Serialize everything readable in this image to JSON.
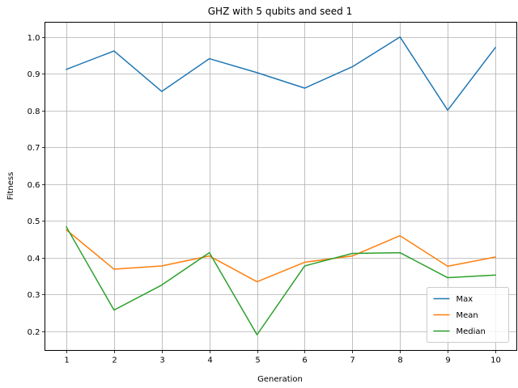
{
  "chart_data": {
    "type": "line",
    "title": "GHZ with 5 qubits and seed 1",
    "xlabel": "Generation",
    "ylabel": "Fitness",
    "x": [
      1,
      2,
      3,
      4,
      5,
      6,
      7,
      8,
      9,
      10
    ],
    "xticks": [
      "1",
      "2",
      "3",
      "4",
      "5",
      "6",
      "7",
      "8",
      "9",
      "10"
    ],
    "xlim": [
      0.55,
      10.45
    ],
    "ylim": [
      0.14845,
      1.04
    ],
    "yticks": [
      "0.2",
      "0.3",
      "0.4",
      "0.5",
      "0.6",
      "0.7",
      "0.8",
      "0.9",
      "1.0"
    ],
    "ytick_values": [
      0.2,
      0.3,
      0.4,
      0.5,
      0.6,
      0.7,
      0.8,
      0.9,
      1.0
    ],
    "grid": true,
    "legend_position": "lower right",
    "series": [
      {
        "name": "Max",
        "color": "#1f77b4",
        "values": [
          0.912,
          0.962,
          0.852,
          0.941,
          0.903,
          0.861,
          0.919,
          1.0,
          0.801,
          0.971
        ]
      },
      {
        "name": "Mean",
        "color": "#ff7f0e",
        "values": [
          0.476,
          0.369,
          0.378,
          0.405,
          0.335,
          0.388,
          0.405,
          0.46,
          0.377,
          0.402
        ]
      },
      {
        "name": "Median",
        "color": "#2ca02c",
        "values": [
          0.484,
          0.258,
          0.326,
          0.414,
          0.191,
          0.378,
          0.412,
          0.414,
          0.346,
          0.353
        ]
      }
    ]
  }
}
